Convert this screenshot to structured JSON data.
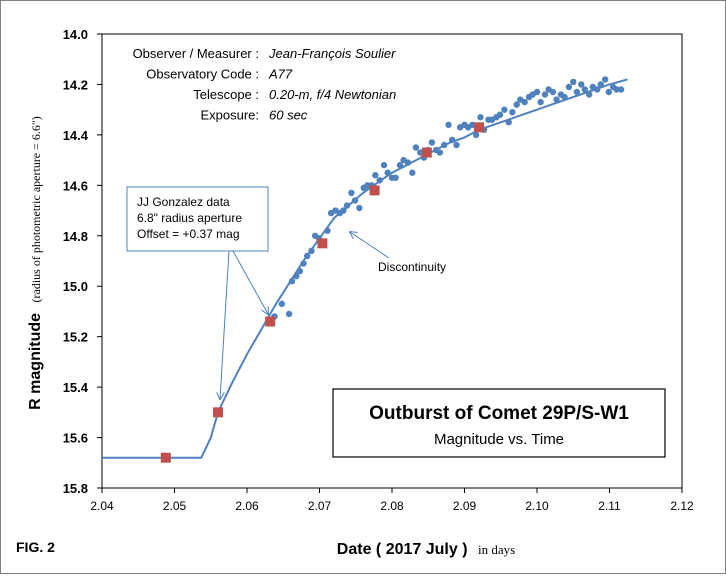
{
  "figure_label": "FIG. 2",
  "chart_data": {
    "type": "scatter",
    "x_range": [
      2.04,
      2.12
    ],
    "y_range": [
      14.0,
      15.8
    ],
    "y_inverted": true,
    "x_ticks": [
      "2.04",
      "2.05",
      "2.06",
      "2.07",
      "2.08",
      "2.09",
      "2.10",
      "2.11",
      "2.12"
    ],
    "y_ticks": [
      "14.0",
      "14.2",
      "14.4",
      "14.6",
      "14.8",
      "15.0",
      "15.2",
      "15.4",
      "15.6",
      "15.8"
    ],
    "xlabel_main": "Date ( 2017 July )",
    "xlabel_sub": "in days",
    "ylabel_main": "R magnitude",
    "ylabel_sub": "(radius of photometric aperture = 6.6\")",
    "grid": false,
    "info": [
      {
        "label": "Observer / Measurer :",
        "value": "Jean-François Soulier"
      },
      {
        "label": "Observatory Code :",
        "value": "A77"
      },
      {
        "label": "Telescope :",
        "value": "0.20-m, f/4 Newtonian"
      },
      {
        "label": "Exposure:",
        "value": "60 sec"
      }
    ],
    "callout_lines": [
      "JJ Gonzalez data",
      "6.8\" radius aperture",
      "Offset = +0.37 mag"
    ],
    "discontinuity_label": "Discontinuity",
    "title_box": {
      "title": "Outburst of Comet 29P/S-W1",
      "subtitle": "Magnitude vs. Time"
    },
    "colors": {
      "observer_points": "#4f81bd",
      "gonzalez_points": "#c0504d",
      "fit_curve": "#4f81bd",
      "text": "#000000"
    },
    "series": [
      {
        "marker": "circle",
        "color": "#4f81bd",
        "x": [
          2.0638,
          2.0648,
          2.0658,
          2.0662,
          2.0668,
          2.0673,
          2.0678,
          2.0683,
          2.0689,
          2.0694,
          2.0699,
          2.0705,
          2.0711,
          2.0716,
          2.0722,
          2.0728,
          2.0733,
          2.0738,
          2.0744,
          2.0749,
          2.0755,
          2.0761,
          2.0766,
          2.0772,
          2.0777,
          2.0783,
          2.0789,
          2.0794,
          2.08,
          2.0805,
          2.0811,
          2.0816,
          2.0822,
          2.0828,
          2.0833,
          2.0839,
          2.0844,
          2.085,
          2.0855,
          2.0861,
          2.0866,
          2.0872,
          2.0878,
          2.0883,
          2.0889,
          2.0894,
          2.09,
          2.0905,
          2.0911,
          2.0916,
          2.0922,
          2.0927,
          2.0933,
          2.0938,
          2.0944,
          2.0949,
          2.0955,
          2.0961,
          2.0966,
          2.0972,
          2.0977,
          2.0983,
          2.0989,
          2.0994,
          2.1,
          2.1005,
          2.1011,
          2.1016,
          2.1022,
          2.1027,
          2.1033,
          2.1038,
          2.1044,
          2.105,
          2.1055,
          2.1061,
          2.1066,
          2.1072,
          2.1077,
          2.1083,
          2.1088,
          2.1094,
          2.1099,
          2.1105,
          2.111,
          2.1116
        ],
        "y": [
          15.12,
          15.07,
          15.11,
          14.98,
          14.96,
          14.94,
          14.91,
          14.88,
          14.86,
          14.8,
          14.81,
          14.83,
          14.78,
          14.71,
          14.7,
          14.71,
          14.7,
          14.68,
          14.63,
          14.66,
          14.69,
          14.61,
          14.6,
          14.6,
          14.56,
          14.58,
          14.52,
          14.55,
          14.57,
          14.57,
          14.52,
          14.5,
          14.51,
          14.55,
          14.45,
          14.47,
          14.49,
          14.46,
          14.43,
          14.46,
          14.47,
          14.44,
          14.36,
          14.42,
          14.44,
          14.37,
          14.36,
          14.37,
          14.36,
          14.4,
          14.33,
          14.38,
          14.34,
          14.34,
          14.33,
          14.32,
          14.3,
          14.35,
          14.31,
          14.28,
          14.26,
          14.27,
          14.25,
          14.24,
          14.23,
          14.27,
          14.24,
          14.22,
          14.23,
          14.26,
          14.24,
          14.25,
          14.21,
          14.19,
          14.23,
          14.2,
          14.22,
          14.24,
          14.21,
          14.22,
          14.2,
          14.18,
          14.23,
          14.21,
          14.22,
          14.22
        ]
      },
      {
        "marker": "square",
        "color": "#c0504d",
        "x": [
          2.0488,
          2.056,
          2.0632,
          2.0704,
          2.0776,
          2.0848,
          2.092
        ],
        "y": [
          15.68,
          15.5,
          15.14,
          14.83,
          14.62,
          14.47,
          14.37
        ]
      }
    ],
    "fit_curve": {
      "x": [
        2.04,
        2.0537,
        2.055,
        2.056,
        2.058,
        2.06,
        2.062,
        2.064,
        2.066,
        2.068,
        2.07,
        2.071,
        2.072,
        2.074,
        2.076,
        2.078,
        2.08,
        2.082,
        2.084,
        2.086,
        2.088,
        2.09,
        2.092,
        2.094,
        2.096,
        2.098,
        2.1,
        2.102,
        2.104,
        2.106,
        2.108,
        2.11,
        2.1125
      ],
      "y": [
        15.68,
        15.68,
        15.6,
        15.5,
        15.38,
        15.27,
        15.17,
        15.07,
        14.98,
        14.89,
        14.81,
        14.77,
        14.73,
        14.68,
        14.63,
        14.59,
        14.55,
        14.52,
        14.49,
        14.46,
        14.43,
        14.41,
        14.38,
        14.36,
        14.34,
        14.32,
        14.3,
        14.28,
        14.26,
        14.24,
        14.22,
        14.2,
        14.18
      ]
    }
  }
}
